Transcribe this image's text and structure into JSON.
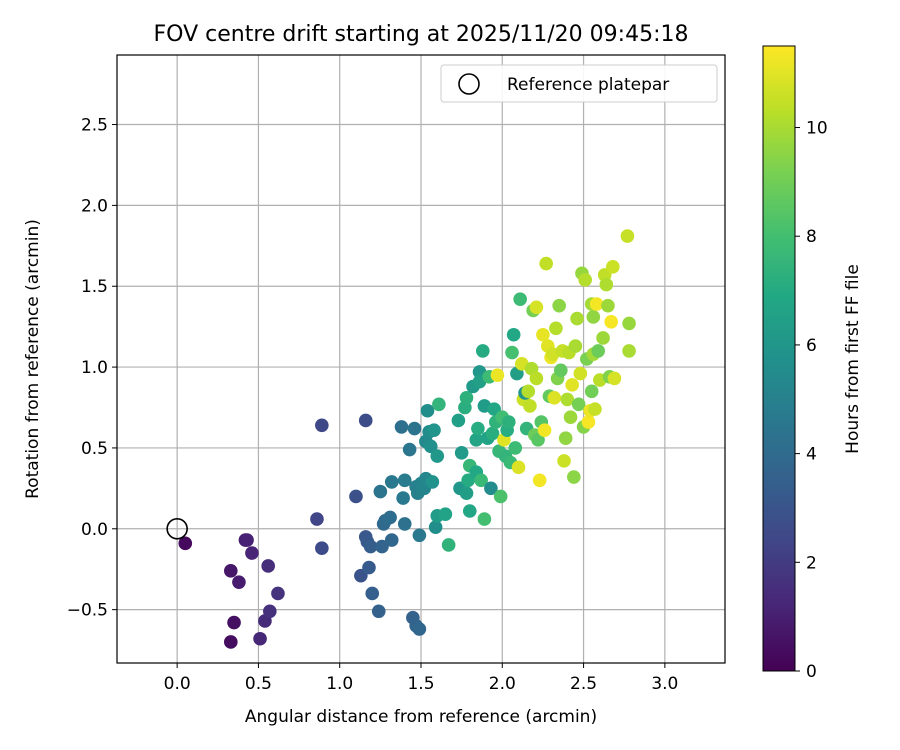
{
  "chart_data": {
    "type": "scatter",
    "title": "FOV centre drift starting at 2025/11/20 09:45:18",
    "xlabel": "Angular distance from reference (arcmin)",
    "ylabel": "Rotation from reference (arcmin)",
    "xlim": [
      -0.37,
      3.37
    ],
    "ylim": [
      -0.83,
      2.93
    ],
    "xticks": [
      0.0,
      0.5,
      1.0,
      1.5,
      2.0,
      2.5,
      3.0
    ],
    "yticks": [
      -0.5,
      0.0,
      0.5,
      1.0,
      1.5,
      2.0,
      2.5
    ],
    "grid": true,
    "legend": {
      "position": "top-right",
      "entries": [
        "Reference platepar"
      ]
    },
    "reference_point": {
      "x": 0.0,
      "y": 0.0,
      "label": "Reference platepar"
    },
    "colorbar": {
      "label": "Hours from first FF file",
      "range": [
        0,
        11.5
      ],
      "ticks": [
        0,
        2,
        4,
        6,
        8,
        10
      ],
      "colormap": "viridis"
    },
    "points": [
      {
        "x": 0.05,
        "y": -0.09,
        "c": 0.3
      },
      {
        "x": 0.33,
        "y": -0.7,
        "c": 0.4
      },
      {
        "x": 0.35,
        "y": -0.58,
        "c": 0.5
      },
      {
        "x": 0.33,
        "y": -0.26,
        "c": 0.7
      },
      {
        "x": 0.38,
        "y": -0.33,
        "c": 0.9
      },
      {
        "x": 0.42,
        "y": -0.07,
        "c": 1.0
      },
      {
        "x": 0.43,
        "y": -0.07,
        "c": 1.1
      },
      {
        "x": 0.46,
        "y": -0.15,
        "c": 1.2
      },
      {
        "x": 0.51,
        "y": -0.68,
        "c": 1.3
      },
      {
        "x": 0.54,
        "y": -0.57,
        "c": 1.4
      },
      {
        "x": 0.56,
        "y": -0.23,
        "c": 1.5
      },
      {
        "x": 0.57,
        "y": -0.51,
        "c": 1.6
      },
      {
        "x": 0.62,
        "y": -0.4,
        "c": 1.7
      },
      {
        "x": 0.86,
        "y": 0.06,
        "c": 2.4
      },
      {
        "x": 0.89,
        "y": 0.64,
        "c": 2.5
      },
      {
        "x": 0.89,
        "y": -0.12,
        "c": 2.6
      },
      {
        "x": 1.1,
        "y": 0.2,
        "c": 2.8
      },
      {
        "x": 1.13,
        "y": -0.29,
        "c": 3.0
      },
      {
        "x": 1.16,
        "y": -0.05,
        "c": 3.1
      },
      {
        "x": 1.16,
        "y": 0.67,
        "c": 2.7
      },
      {
        "x": 1.17,
        "y": -0.08,
        "c": 3.2
      },
      {
        "x": 1.18,
        "y": -0.24,
        "c": 3.3
      },
      {
        "x": 1.19,
        "y": -0.11,
        "c": 3.4
      },
      {
        "x": 1.2,
        "y": -0.4,
        "c": 3.5
      },
      {
        "x": 1.24,
        "y": -0.51,
        "c": 3.6
      },
      {
        "x": 1.25,
        "y": 0.23,
        "c": 4.4
      },
      {
        "x": 1.26,
        "y": -0.11,
        "c": 3.7
      },
      {
        "x": 1.27,
        "y": 0.03,
        "c": 3.9
      },
      {
        "x": 1.28,
        "y": 0.05,
        "c": 4.0
      },
      {
        "x": 1.31,
        "y": 0.07,
        "c": 4.1
      },
      {
        "x": 1.32,
        "y": -0.07,
        "c": 3.8
      },
      {
        "x": 1.32,
        "y": 0.29,
        "c": 4.6
      },
      {
        "x": 1.38,
        "y": 0.63,
        "c": 4.2
      },
      {
        "x": 1.39,
        "y": 0.19,
        "c": 4.7
      },
      {
        "x": 1.4,
        "y": 0.3,
        "c": 4.8
      },
      {
        "x": 1.4,
        "y": 0.03,
        "c": 4.3
      },
      {
        "x": 1.43,
        "y": 0.49,
        "c": 4.5
      },
      {
        "x": 1.45,
        "y": -0.55,
        "c": 3.6
      },
      {
        "x": 1.46,
        "y": 0.62,
        "c": 4.4
      },
      {
        "x": 1.47,
        "y": -0.6,
        "c": 3.7
      },
      {
        "x": 1.47,
        "y": 0.26,
        "c": 4.9
      },
      {
        "x": 1.48,
        "y": 0.22,
        "c": 5.0
      },
      {
        "x": 1.49,
        "y": -0.62,
        "c": 3.8
      },
      {
        "x": 1.49,
        "y": -0.04,
        "c": 4.6
      },
      {
        "x": 1.5,
        "y": 0.28,
        "c": 5.1
      },
      {
        "x": 1.52,
        "y": 0.25,
        "c": 5.2
      },
      {
        "x": 1.53,
        "y": 0.31,
        "c": 5.3
      },
      {
        "x": 1.53,
        "y": 0.54,
        "c": 5.4
      },
      {
        "x": 1.54,
        "y": 0.73,
        "c": 5.6
      },
      {
        "x": 1.55,
        "y": 0.6,
        "c": 5.5
      },
      {
        "x": 1.56,
        "y": 0.51,
        "c": 5.7
      },
      {
        "x": 1.57,
        "y": 0.29,
        "c": 5.8
      },
      {
        "x": 1.58,
        "y": 0.61,
        "c": 5.9
      },
      {
        "x": 1.59,
        "y": 0.01,
        "c": 5.6
      },
      {
        "x": 1.6,
        "y": 0.45,
        "c": 6.1
      },
      {
        "x": 1.6,
        "y": 0.08,
        "c": 6.3
      },
      {
        "x": 1.61,
        "y": 0.77,
        "c": 7.5
      },
      {
        "x": 1.65,
        "y": 0.09,
        "c": 6.6
      },
      {
        "x": 1.67,
        "y": -0.1,
        "c": 7.4
      },
      {
        "x": 1.73,
        "y": 0.67,
        "c": 6.5
      },
      {
        "x": 1.74,
        "y": 0.25,
        "c": 6.0
      },
      {
        "x": 1.75,
        "y": 0.47,
        "c": 6.2
      },
      {
        "x": 1.77,
        "y": 0.75,
        "c": 7.2
      },
      {
        "x": 1.78,
        "y": 0.22,
        "c": 6.4
      },
      {
        "x": 1.78,
        "y": 0.81,
        "c": 7.3
      },
      {
        "x": 1.79,
        "y": 0.3,
        "c": 7.0
      },
      {
        "x": 1.8,
        "y": 0.39,
        "c": 7.6
      },
      {
        "x": 1.8,
        "y": 0.11,
        "c": 6.8
      },
      {
        "x": 1.82,
        "y": 0.88,
        "c": 6.2
      },
      {
        "x": 1.84,
        "y": 0.55,
        "c": 6.7
      },
      {
        "x": 1.84,
        "y": 0.35,
        "c": 6.9
      },
      {
        "x": 1.85,
        "y": 0.62,
        "c": 7.1
      },
      {
        "x": 1.86,
        "y": 0.97,
        "c": 6.0
      },
      {
        "x": 1.86,
        "y": 0.91,
        "c": 6.5
      },
      {
        "x": 1.87,
        "y": 0.3,
        "c": 7.7
      },
      {
        "x": 1.88,
        "y": 1.1,
        "c": 7.0
      },
      {
        "x": 1.89,
        "y": 0.06,
        "c": 8.0
      },
      {
        "x": 1.89,
        "y": 0.76,
        "c": 6.3
      },
      {
        "x": 1.91,
        "y": 0.56,
        "c": 6.6
      },
      {
        "x": 1.92,
        "y": 0.94,
        "c": 7.8
      },
      {
        "x": 1.93,
        "y": 0.25,
        "c": 5.5
      },
      {
        "x": 1.94,
        "y": 0.59,
        "c": 7.2
      },
      {
        "x": 1.95,
        "y": 0.74,
        "c": 6.8
      },
      {
        "x": 1.96,
        "y": 0.66,
        "c": 7.4
      },
      {
        "x": 1.97,
        "y": 0.95,
        "c": 11.2
      },
      {
        "x": 1.98,
        "y": 0.48,
        "c": 7.6
      },
      {
        "x": 1.99,
        "y": 0.2,
        "c": 8.2
      },
      {
        "x": 2.0,
        "y": 0.69,
        "c": 7.9
      },
      {
        "x": 2.01,
        "y": 0.55,
        "c": 11.0
      },
      {
        "x": 2.02,
        "y": 0.45,
        "c": 7.5
      },
      {
        "x": 2.03,
        "y": 0.61,
        "c": 7.1
      },
      {
        "x": 2.04,
        "y": 0.66,
        "c": 7.3
      },
      {
        "x": 2.05,
        "y": 0.41,
        "c": 7.7
      },
      {
        "x": 2.06,
        "y": 1.09,
        "c": 8.1
      },
      {
        "x": 2.07,
        "y": 1.2,
        "c": 6.9
      },
      {
        "x": 2.08,
        "y": 0.5,
        "c": 7.8
      },
      {
        "x": 2.09,
        "y": 0.96,
        "c": 6.4
      },
      {
        "x": 2.1,
        "y": 0.38,
        "c": 10.9
      },
      {
        "x": 2.11,
        "y": 1.42,
        "c": 7.8
      },
      {
        "x": 2.12,
        "y": 1.02,
        "c": 10.8
      },
      {
        "x": 2.13,
        "y": 0.8,
        "c": 10.6
      },
      {
        "x": 2.14,
        "y": 0.84,
        "c": 5.9
      },
      {
        "x": 2.15,
        "y": 0.62,
        "c": 7.5
      },
      {
        "x": 2.16,
        "y": 0.85,
        "c": 10.2
      },
      {
        "x": 2.17,
        "y": 0.76,
        "c": 10.4
      },
      {
        "x": 2.18,
        "y": 0.99,
        "c": 10.1
      },
      {
        "x": 2.19,
        "y": 1.35,
        "c": 9.1
      },
      {
        "x": 2.2,
        "y": 0.58,
        "c": 8.9
      },
      {
        "x": 2.21,
        "y": 0.93,
        "c": 10.3
      },
      {
        "x": 2.21,
        "y": 1.37,
        "c": 10.8
      },
      {
        "x": 2.22,
        "y": 0.55,
        "c": 8.5
      },
      {
        "x": 2.23,
        "y": 0.3,
        "c": 11.3
      },
      {
        "x": 2.24,
        "y": 0.66,
        "c": 8.4
      },
      {
        "x": 2.25,
        "y": 1.2,
        "c": 11.1
      },
      {
        "x": 2.26,
        "y": 0.61,
        "c": 11.3
      },
      {
        "x": 2.27,
        "y": 1.64,
        "c": 10.4
      },
      {
        "x": 2.28,
        "y": 1.13,
        "c": 11.0
      },
      {
        "x": 2.29,
        "y": 0.82,
        "c": 8.7
      },
      {
        "x": 2.3,
        "y": 1.06,
        "c": 11.2
      },
      {
        "x": 2.31,
        "y": 1.08,
        "c": 10.7
      },
      {
        "x": 2.32,
        "y": 0.81,
        "c": 10.9
      },
      {
        "x": 2.33,
        "y": 1.24,
        "c": 10.2
      },
      {
        "x": 2.34,
        "y": 0.93,
        "c": 9.3
      },
      {
        "x": 2.35,
        "y": 1.38,
        "c": 9.5
      },
      {
        "x": 2.36,
        "y": 0.98,
        "c": 8.7
      },
      {
        "x": 2.37,
        "y": 1.1,
        "c": 10.5
      },
      {
        "x": 2.38,
        "y": 0.42,
        "c": 10.6
      },
      {
        "x": 2.39,
        "y": 0.56,
        "c": 9.6
      },
      {
        "x": 2.4,
        "y": 0.8,
        "c": 10.1
      },
      {
        "x": 2.41,
        "y": 1.09,
        "c": 10.3
      },
      {
        "x": 2.42,
        "y": 0.69,
        "c": 9.8
      },
      {
        "x": 2.43,
        "y": 0.89,
        "c": 11.0
      },
      {
        "x": 2.44,
        "y": 0.32,
        "c": 9.5
      },
      {
        "x": 2.45,
        "y": 1.13,
        "c": 10.0
      },
      {
        "x": 2.46,
        "y": 1.3,
        "c": 10.0
      },
      {
        "x": 2.47,
        "y": 0.77,
        "c": 9.1
      },
      {
        "x": 2.48,
        "y": 0.96,
        "c": 10.7
      },
      {
        "x": 2.49,
        "y": 1.58,
        "c": 9.7
      },
      {
        "x": 2.5,
        "y": 0.63,
        "c": 9.4
      },
      {
        "x": 2.51,
        "y": 1.54,
        "c": 10.2
      },
      {
        "x": 2.52,
        "y": 1.05,
        "c": 9.2
      },
      {
        "x": 2.53,
        "y": 0.66,
        "c": 11.4
      },
      {
        "x": 2.54,
        "y": 0.73,
        "c": 11.2
      },
      {
        "x": 2.55,
        "y": 1.39,
        "c": 9.9
      },
      {
        "x": 2.55,
        "y": 0.85,
        "c": 9.0
      },
      {
        "x": 2.56,
        "y": 1.08,
        "c": 9.9
      },
      {
        "x": 2.56,
        "y": 1.31,
        "c": 9.6
      },
      {
        "x": 2.57,
        "y": 0.74,
        "c": 10.5
      },
      {
        "x": 2.58,
        "y": 1.39,
        "c": 11.3
      },
      {
        "x": 2.59,
        "y": 1.1,
        "c": 8.9
      },
      {
        "x": 2.6,
        "y": 0.92,
        "c": 10.3
      },
      {
        "x": 2.62,
        "y": 1.18,
        "c": 9.8
      },
      {
        "x": 2.63,
        "y": 1.57,
        "c": 10.4
      },
      {
        "x": 2.64,
        "y": 1.51,
        "c": 10.1
      },
      {
        "x": 2.65,
        "y": 1.38,
        "c": 9.8
      },
      {
        "x": 2.66,
        "y": 0.94,
        "c": 9.3
      },
      {
        "x": 2.67,
        "y": 1.28,
        "c": 11.4
      },
      {
        "x": 2.68,
        "y": 1.62,
        "c": 10.6
      },
      {
        "x": 2.69,
        "y": 0.93,
        "c": 10.8
      },
      {
        "x": 2.77,
        "y": 1.81,
        "c": 10.5
      },
      {
        "x": 2.78,
        "y": 1.27,
        "c": 9.7
      },
      {
        "x": 2.78,
        "y": 1.1,
        "c": 10.0
      }
    ]
  }
}
